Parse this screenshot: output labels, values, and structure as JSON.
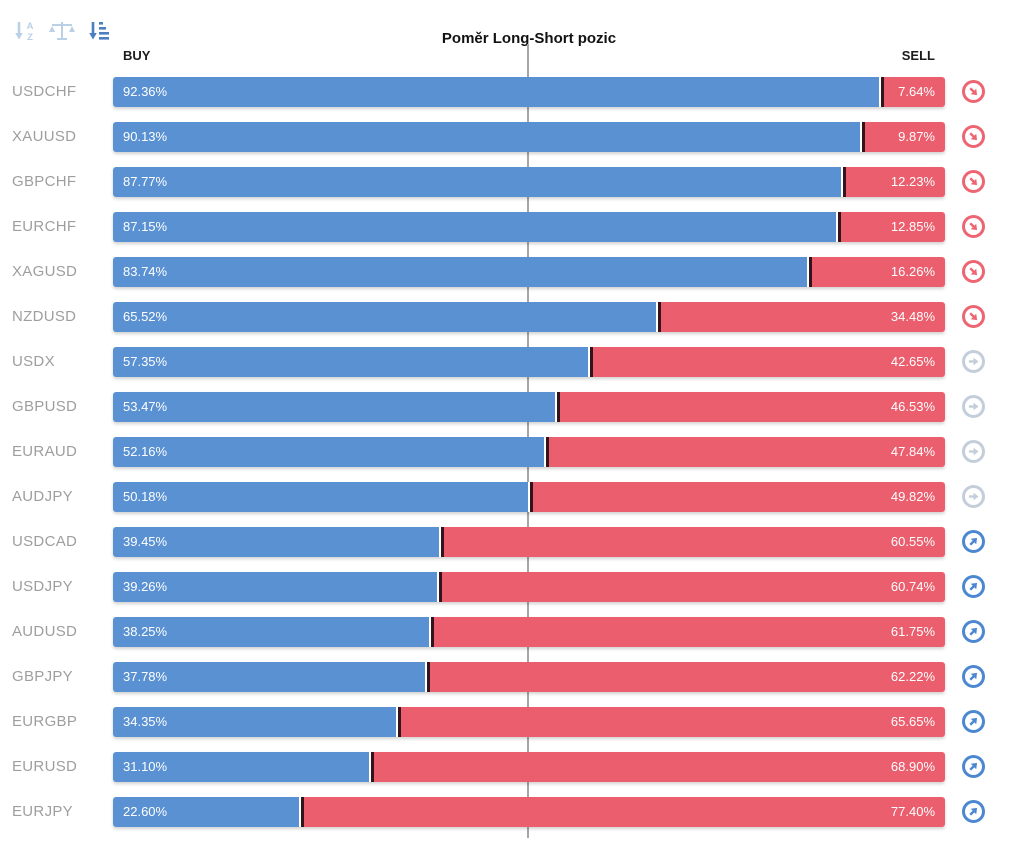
{
  "title": "Poměr Long-Short pozic",
  "axis": {
    "buy_label": "BUY",
    "sell_label": "SELL"
  },
  "toolbar": {
    "icons": [
      {
        "name": "sort-alphabetical-icon",
        "active": false
      },
      {
        "name": "balance-scale-icon",
        "active": false
      },
      {
        "name": "sort-amount-icon",
        "active": true
      }
    ],
    "inactive_color": "#b9d0e7",
    "active_color": "#4a7fc1"
  },
  "colors": {
    "buy_bar": "#5991d3",
    "sell_bar": "#ea5e6e",
    "divider": "#33141c",
    "gridline": "#a6a6a6",
    "pair_label": "#9e9e9e",
    "icon_down": "#ed6572",
    "icon_neutral": "#c4cedb",
    "icon_up": "#4c87d1"
  },
  "rows": [
    {
      "pair": "USDCHF",
      "buy": 92.36,
      "sell": 7.64,
      "buy_label": "92.36%",
      "sell_label": "7.64%",
      "trend": "down"
    },
    {
      "pair": "XAUUSD",
      "buy": 90.13,
      "sell": 9.87,
      "buy_label": "90.13%",
      "sell_label": "9.87%",
      "trend": "down"
    },
    {
      "pair": "GBPCHF",
      "buy": 87.77,
      "sell": 12.23,
      "buy_label": "87.77%",
      "sell_label": "12.23%",
      "trend": "down"
    },
    {
      "pair": "EURCHF",
      "buy": 87.15,
      "sell": 12.85,
      "buy_label": "87.15%",
      "sell_label": "12.85%",
      "trend": "down"
    },
    {
      "pair": "XAGUSD",
      "buy": 83.74,
      "sell": 16.26,
      "buy_label": "83.74%",
      "sell_label": "16.26%",
      "trend": "down"
    },
    {
      "pair": "NZDUSD",
      "buy": 65.52,
      "sell": 34.48,
      "buy_label": "65.52%",
      "sell_label": "34.48%",
      "trend": "down"
    },
    {
      "pair": "USDX",
      "buy": 57.35,
      "sell": 42.65,
      "buy_label": "57.35%",
      "sell_label": "42.65%",
      "trend": "neutral"
    },
    {
      "pair": "GBPUSD",
      "buy": 53.47,
      "sell": 46.53,
      "buy_label": "53.47%",
      "sell_label": "46.53%",
      "trend": "neutral"
    },
    {
      "pair": "EURAUD",
      "buy": 52.16,
      "sell": 47.84,
      "buy_label": "52.16%",
      "sell_label": "47.84%",
      "trend": "neutral"
    },
    {
      "pair": "AUDJPY",
      "buy": 50.18,
      "sell": 49.82,
      "buy_label": "50.18%",
      "sell_label": "49.82%",
      "trend": "neutral"
    },
    {
      "pair": "USDCAD",
      "buy": 39.45,
      "sell": 60.55,
      "buy_label": "39.45%",
      "sell_label": "60.55%",
      "trend": "up"
    },
    {
      "pair": "USDJPY",
      "buy": 39.26,
      "sell": 60.74,
      "buy_label": "39.26%",
      "sell_label": "60.74%",
      "trend": "up"
    },
    {
      "pair": "AUDUSD",
      "buy": 38.25,
      "sell": 61.75,
      "buy_label": "38.25%",
      "sell_label": "61.75%",
      "trend": "up"
    },
    {
      "pair": "GBPJPY",
      "buy": 37.78,
      "sell": 62.22,
      "buy_label": "37.78%",
      "sell_label": "62.22%",
      "trend": "up"
    },
    {
      "pair": "EURGBP",
      "buy": 34.35,
      "sell": 65.65,
      "buy_label": "34.35%",
      "sell_label": "65.65%",
      "trend": "up"
    },
    {
      "pair": "EURUSD",
      "buy": 31.1,
      "sell": 68.9,
      "buy_label": "31.10%",
      "sell_label": "68.90%",
      "trend": "up"
    },
    {
      "pair": "EURJPY",
      "buy": 22.6,
      "sell": 77.4,
      "buy_label": "22.60%",
      "sell_label": "77.40%",
      "trend": "up"
    }
  ],
  "chart_data": {
    "type": "bar",
    "orientation": "horizontal",
    "stacked": true,
    "title": "Poměr Long-Short pozic",
    "categories": [
      "USDCHF",
      "XAUUSD",
      "GBPCHF",
      "EURCHF",
      "XAGUSD",
      "NZDUSD",
      "USDX",
      "GBPUSD",
      "EURAUD",
      "AUDJPY",
      "USDCAD",
      "USDJPY",
      "AUDUSD",
      "GBPJPY",
      "EURGBP",
      "EURUSD",
      "EURJPY"
    ],
    "series": [
      {
        "name": "BUY",
        "color": "#5991d3",
        "values": [
          92.36,
          90.13,
          87.77,
          87.15,
          83.74,
          65.52,
          57.35,
          53.47,
          52.16,
          50.18,
          39.45,
          39.26,
          38.25,
          37.78,
          34.35,
          31.1,
          22.6
        ]
      },
      {
        "name": "SELL",
        "color": "#ea5e6e",
        "values": [
          7.64,
          9.87,
          12.23,
          12.85,
          16.26,
          34.48,
          42.65,
          46.53,
          47.84,
          49.82,
          60.55,
          60.74,
          61.75,
          62.22,
          65.65,
          68.9,
          77.4
        ]
      }
    ],
    "xlim": [
      0,
      100
    ],
    "center_gridline": 50,
    "legend_position": "top (BUY left, SELL right)"
  }
}
